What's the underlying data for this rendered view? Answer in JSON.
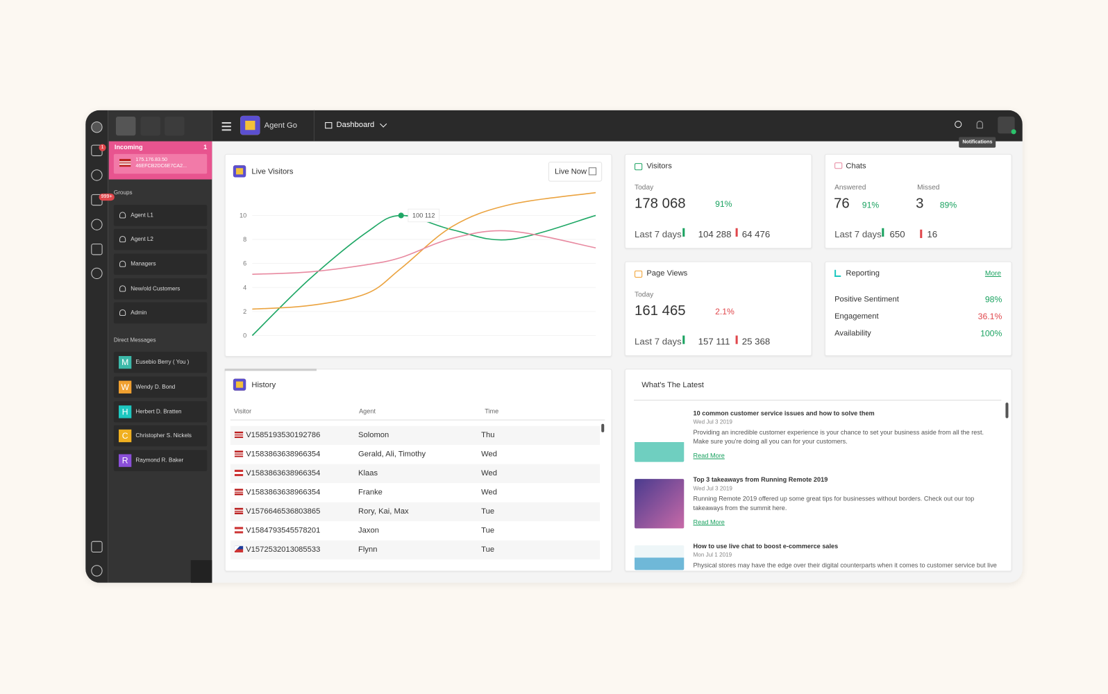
{
  "topbar": {
    "app_name": "Agent Go",
    "nav": "Dashboard",
    "tooltip": "Notifications"
  },
  "sidebar": {
    "badges": [
      "1",
      "999+"
    ],
    "incoming": {
      "label": "Incoming",
      "count": "1",
      "ip": "175.176.83.50",
      "id": "46EFCB2DC6E7CA2..."
    },
    "groups": {
      "title": "Groups",
      "items": [
        "Agent L1",
        "Agent L2",
        "Managers",
        "New/old Customers",
        "Admin"
      ]
    },
    "direct_messages": {
      "title": "Direct Messages",
      "items": [
        {
          "initial": "M",
          "name": "Eusebio Berry ( You )"
        },
        {
          "initial": "W",
          "name": "Wendy D. Bond"
        },
        {
          "initial": "H",
          "name": "Herbert D. Bratten"
        },
        {
          "initial": "C",
          "name": "Christopher S. Nickels"
        },
        {
          "initial": "R",
          "name": "Raymond R. Baker"
        }
      ]
    }
  },
  "chart_data": {
    "type": "line",
    "title": "Live Visitors",
    "button": "Live Now",
    "x": [
      0,
      1,
      2,
      2.6,
      3.5,
      4.5,
      6
    ],
    "xlim": [
      0,
      6
    ],
    "ylim": [
      0,
      12
    ],
    "yticks": [
      0,
      2,
      4,
      6,
      8,
      10
    ],
    "grid": true,
    "series": [
      {
        "color": "#1ea765",
        "values": [
          0,
          4.7,
          8.6,
          10,
          8.8,
          8.0,
          10
        ]
      },
      {
        "color": "#eba33f",
        "values": [
          2.2,
          2.5,
          3.5,
          5.6,
          9.1,
          10.9,
          11.9
        ]
      },
      {
        "color": "#e889a0",
        "values": [
          5.1,
          5.3,
          5.9,
          6.5,
          8.1,
          8.7,
          7.3
        ]
      }
    ],
    "annotation": "100 112"
  },
  "visitors": {
    "title": "Visitors",
    "today_label": "Today",
    "today": "178 068",
    "today_change": "91%",
    "last7_label": "Last 7 days",
    "up": "104 288",
    "down": "64 476"
  },
  "chats": {
    "title": "Chats",
    "answered_label": "Answered",
    "answered": "76",
    "answered_change": "91%",
    "missed_label": "Missed",
    "missed": "3",
    "missed_change": "89%",
    "last7_label": "Last 7 days",
    "up": "650",
    "down": "16"
  },
  "page_views": {
    "title": "Page Views",
    "today_label": "Today",
    "today": "161 465",
    "today_change": "2.1%",
    "last7_label": "Last 7 days",
    "up": "157 111",
    "down": "25 368"
  },
  "reporting": {
    "title": "Reporting",
    "more": "More",
    "rows": [
      {
        "label": "Positive Sentiment",
        "value": "98%"
      },
      {
        "label": "Engagement",
        "value": "36.1%"
      },
      {
        "label": "Availability",
        "value": "100%"
      }
    ]
  },
  "history": {
    "title": "History",
    "columns": [
      "Visitor",
      "Agent",
      "Time"
    ],
    "rows": [
      [
        "V1585193530192786",
        "Solomon",
        "Thu"
      ],
      [
        "V1583863638966354",
        "Gerald, Ali, Timothy",
        "Wed"
      ],
      [
        "V1583863638966354",
        "Klaas",
        "Wed"
      ],
      [
        "V1583863638966354",
        "Franke",
        "Wed"
      ],
      [
        "V1576646536803865",
        "Rory, Kai, Max",
        "Tue"
      ],
      [
        "V1584793545578201",
        "Jaxon",
        "Tue"
      ],
      [
        "V1572532013085533",
        "Flynn",
        "Tue"
      ]
    ]
  },
  "latest": {
    "title": "What's The Latest",
    "items": [
      {
        "title": "10 common customer service issues and how to solve them",
        "date": "Wed Jul 3 2019",
        "text": "Providing an incredible customer experience is your chance to set your business aside from all the rest. Make sure you're doing all you can for your customers.",
        "link": "Read More"
      },
      {
        "title": "Top 3 takeaways from Running Remote 2019",
        "date": "Wed Jul 3 2019",
        "text": "Running Remote 2019 offered up some great tips for businesses without borders. Check out our top takeaways from the summit here.",
        "link": "Read More"
      },
      {
        "title": "How to use live chat to boost e-commerce sales",
        "date": "Mon Jul 1 2019",
        "text": "Physical stores may have the edge over their digital counterparts when it comes to customer service but live"
      }
    ]
  }
}
